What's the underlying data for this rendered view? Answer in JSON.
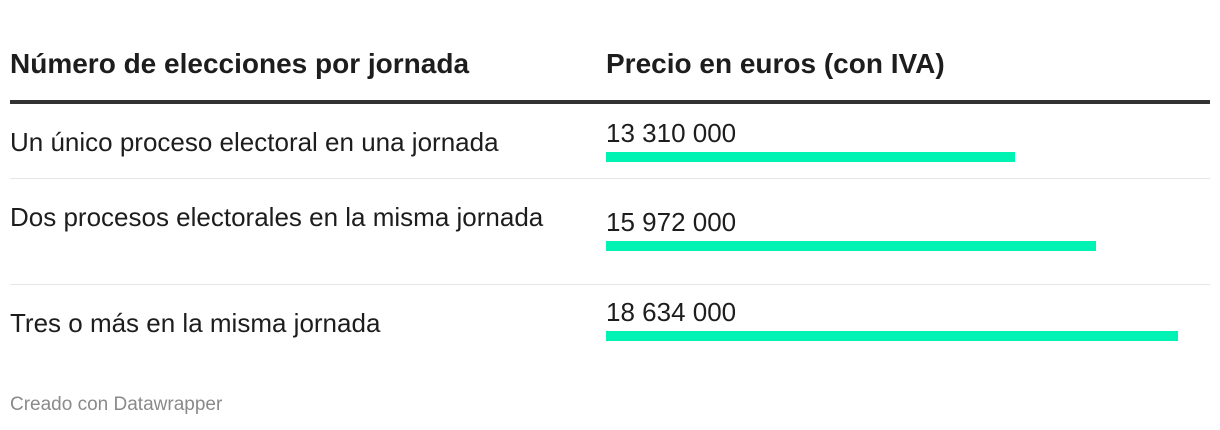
{
  "table": {
    "header_category": "Número de elecciones por jornada",
    "header_value": "Precio en euros (con IVA)"
  },
  "chart_data": {
    "type": "table",
    "title": "",
    "columns": [
      "Número de elecciones por jornada",
      "Precio en euros (con IVA)"
    ],
    "categories": [
      "Un único proceso electoral en una jornada",
      "Dos procesos electorales en la misma jornada",
      "Tres o más en la misma jornada"
    ],
    "values": [
      13310000,
      15972000,
      18634000
    ],
    "value_labels": [
      "13 310 000",
      "15 972 000",
      "18 634 000"
    ],
    "bar_color": "#00f3b3",
    "xlim": [
      0,
      18634000
    ]
  },
  "footer": {
    "credit": "Creado con Datawrapper"
  }
}
